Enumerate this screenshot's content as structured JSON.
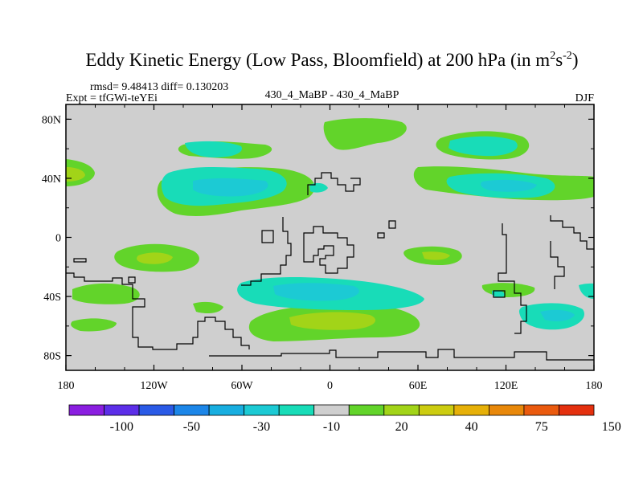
{
  "chart_data": {
    "type": "heatmap",
    "title": "Eddy Kinetic Energy (Low Pass, Bloomfield) at 200 hPa (in m",
    "title_unit_sup1": "2",
    "title_unit_s": "s",
    "title_unit_sup2": "-2",
    "title_close": ")",
    "rmsd_label": "rmsd= 9.48413 diff= 0.130203",
    "expt_label": "Expt = tfGWi-teYEi",
    "case_label": "430_4_MaBP - 430_4_MaBP",
    "season": "DJF",
    "x_ticks": [
      "180",
      "120W",
      "60W",
      "0",
      "60E",
      "120E",
      "180"
    ],
    "y_ticks": [
      "80N",
      "40N",
      "0",
      "40S",
      "80S"
    ],
    "xlim": [
      -180,
      180
    ],
    "ylim": [
      -90,
      90
    ],
    "colorbar_labels": [
      "-100",
      "-50",
      "-30",
      "-10",
      "20",
      "40",
      "75",
      "150"
    ],
    "colorbar_colors": [
      "#8a1ee0",
      "#5c2ee8",
      "#2a5ae6",
      "#1c86e8",
      "#18aee0",
      "#1ccad4",
      "#18dcb8",
      "#cfcfcf",
      "#62d42a",
      "#a2d418",
      "#cccc10",
      "#e6b008",
      "#e8880a",
      "#ea5a0e",
      "#e4300e"
    ],
    "background_color": "#cfcfcf",
    "regions": [
      {
        "name": "north-atlantic-band",
        "lon": -130,
        "lat": 35,
        "sign": "negative",
        "level": -20
      },
      {
        "name": "north-pacific-patch",
        "lon": 105,
        "lat": 35,
        "sign": "negative",
        "level": -15
      },
      {
        "name": "arctic-patch",
        "lon": 15,
        "lat": 80,
        "sign": "positive",
        "level": 15
      },
      {
        "name": "south-pacific-patch",
        "lon": -122,
        "lat": -15,
        "sign": "positive",
        "level": 25
      },
      {
        "name": "south-atlantic-band",
        "lon": -10,
        "lat": -35,
        "sign": "negative",
        "level": -20
      },
      {
        "name": "southern-ocean-band",
        "lon": 5,
        "lat": -60,
        "sign": "positive",
        "level": 25
      },
      {
        "name": "south-indian-patch",
        "lon": 152,
        "lat": -55,
        "sign": "negative",
        "level": -15
      }
    ]
  }
}
